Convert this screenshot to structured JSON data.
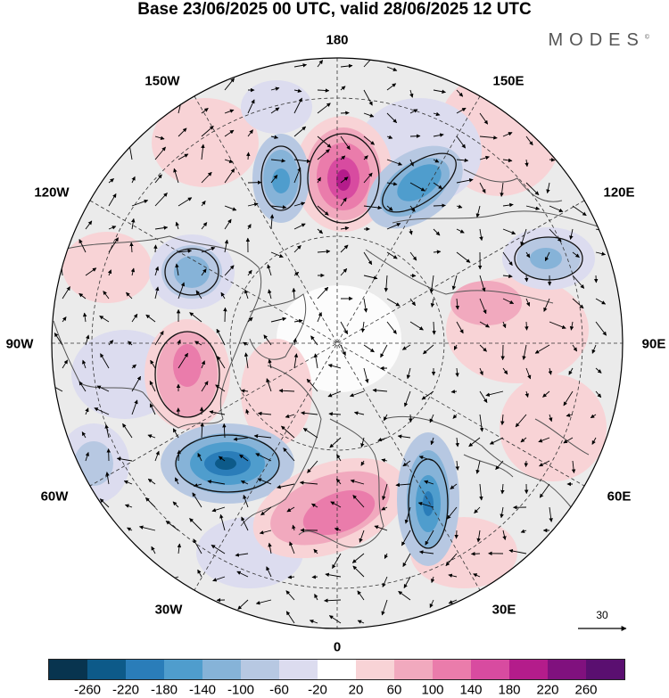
{
  "title": "Base 23/06/2025 00 UTC, valid 28/06/2025 12 UTC",
  "brand": "MODES",
  "brand_mark": "©",
  "longitude_labels": {
    "top": "180",
    "bottom": "0",
    "left": "90W",
    "right": "90E",
    "upper_left_150": "150W",
    "upper_left_120": "120W",
    "lower_left_60": "60W",
    "lower_left_30": "30W",
    "upper_right_150": "150E",
    "upper_right_120": "120E",
    "lower_right_60": "60E",
    "lower_right_30": "30E"
  },
  "reference_vector": {
    "value": "30"
  },
  "colorbar": {
    "labels": [
      "-260",
      "-220",
      "-180",
      "-140",
      "-100",
      "-60",
      "-20",
      "20",
      "60",
      "100",
      "140",
      "180",
      "220",
      "260"
    ],
    "colors": [
      "#08344f",
      "#0d5a89",
      "#2a7db9",
      "#4f9dcd",
      "#86b3d8",
      "#b7c8e2",
      "#dcdcef",
      "#ffffff",
      "#f8d3d6",
      "#f1a9be",
      "#ea7cab",
      "#d84ba0",
      "#b41c8b",
      "#80117e",
      "#5a0f70"
    ]
  },
  "map": {
    "projection": "north polar stereographic",
    "background_fill": "#ebebeb",
    "coast_color": "#555555",
    "anomalies": [
      {
        "id": "a1",
        "sign": "positive",
        "magnitude": 180
      },
      {
        "id": "a2",
        "sign": "negative",
        "magnitude": 140
      },
      {
        "id": "a3",
        "sign": "negative",
        "magnitude": 100
      },
      {
        "id": "a4",
        "sign": "negative",
        "magnitude": 100
      },
      {
        "id": "a5",
        "sign": "positive",
        "magnitude": 100
      },
      {
        "id": "a6",
        "sign": "negative",
        "magnitude": 180
      },
      {
        "id": "a7",
        "sign": "positive",
        "magnitude": 140
      },
      {
        "id": "a8",
        "sign": "negative",
        "magnitude": 140
      },
      {
        "id": "a9",
        "sign": "negative",
        "magnitude": 60
      },
      {
        "id": "a10",
        "sign": "positive",
        "magnitude": 60
      }
    ]
  }
}
